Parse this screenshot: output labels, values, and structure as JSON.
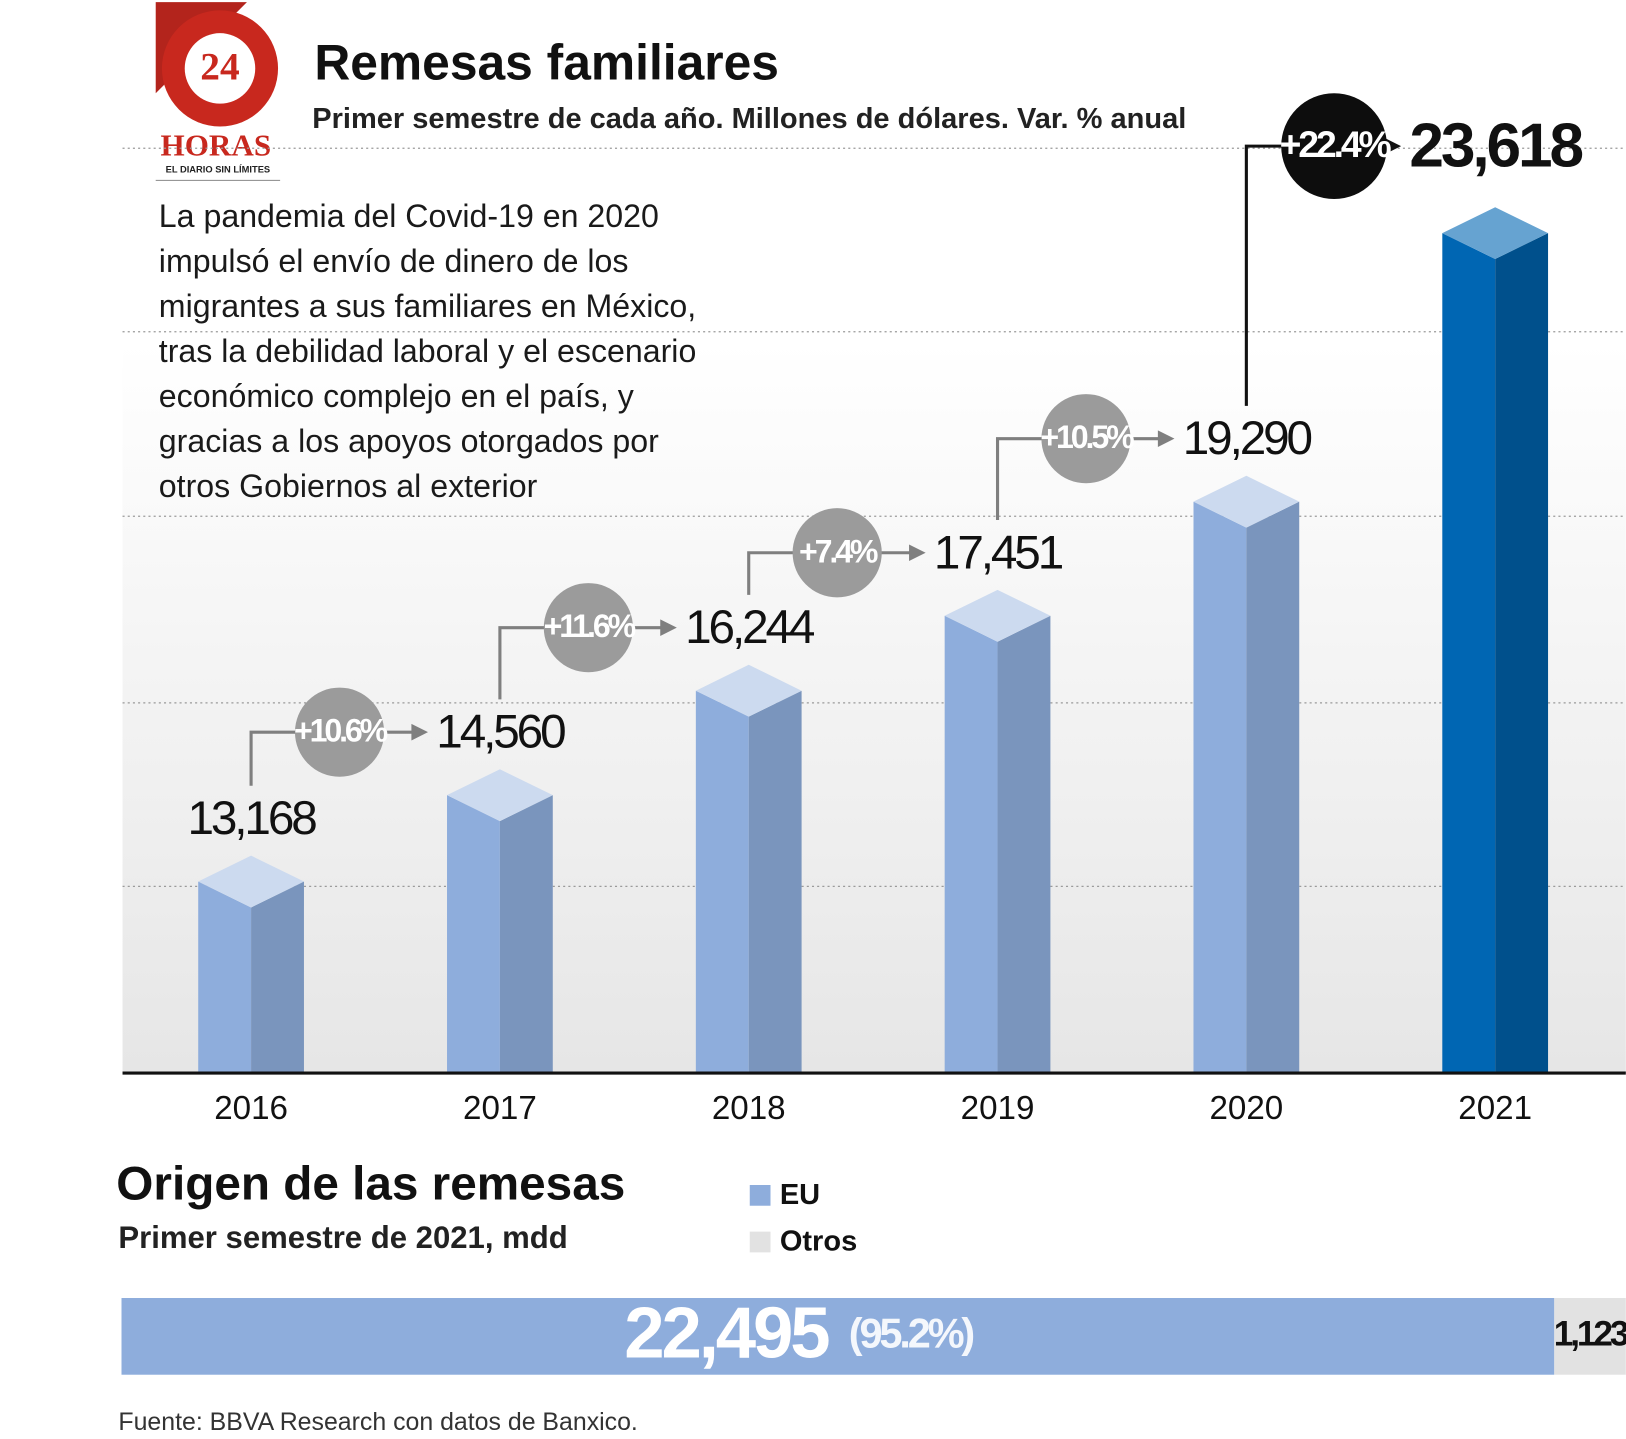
{
  "logo": {
    "number": "24",
    "name": "HORAS",
    "tagline": "EL DIARIO SIN LÍMITES"
  },
  "chart_data": [
    {
      "type": "bar3d",
      "title": "Remesas familiares",
      "subtitle": "Primer semestre de cada año. Millones de dólares. Var. % anual",
      "note_lines": [
        "La pandemia del Covid-19 en 2020",
        "impulsó el envío de dinero de los",
        "migrantes a sus familiares en México,",
        "tras la debilidad laboral y el escenario",
        "económico complejo en el país, y",
        "gracias a los apoyos otorgados por",
        "otros Gobiernos al exterior"
      ],
      "categories": [
        "2016",
        "2017",
        "2018",
        "2019",
        "2020",
        "2021"
      ],
      "values": [
        13168,
        14560,
        16244,
        17451,
        19290,
        23618
      ],
      "value_labels": [
        "13,168",
        "14,560",
        "16,244",
        "17,451",
        "19,290",
        "23,618"
      ],
      "changes": [
        "+10.6%",
        "+11.6%",
        "+7.4%",
        "+10.5%",
        "+22.4%"
      ],
      "colors": [
        "#8eaddc",
        "#8eaddc",
        "#8eaddc",
        "#8eaddc",
        "#8eaddc",
        "#0066b3"
      ],
      "ylim": [
        10500,
        24000
      ],
      "grid": true
    },
    {
      "type": "stacked_hbar",
      "title": "Origen de las remesas",
      "subtitle": "Primer semestre de 2021, mdd",
      "series": [
        {
          "name": "EU",
          "color": "#8eaddc",
          "values": [
            22495
          ],
          "value_labels": [
            "22,495"
          ],
          "share_labels": [
            "(95.2%)"
          ]
        },
        {
          "name": "Otros",
          "color": "#e2e2e2",
          "values": [
            1123
          ],
          "value_labels": [
            "1,123"
          ]
        }
      ],
      "xlim": [
        0,
        23618
      ],
      "source": "Fuente: BBVA Research con datos de Banxico."
    }
  ]
}
